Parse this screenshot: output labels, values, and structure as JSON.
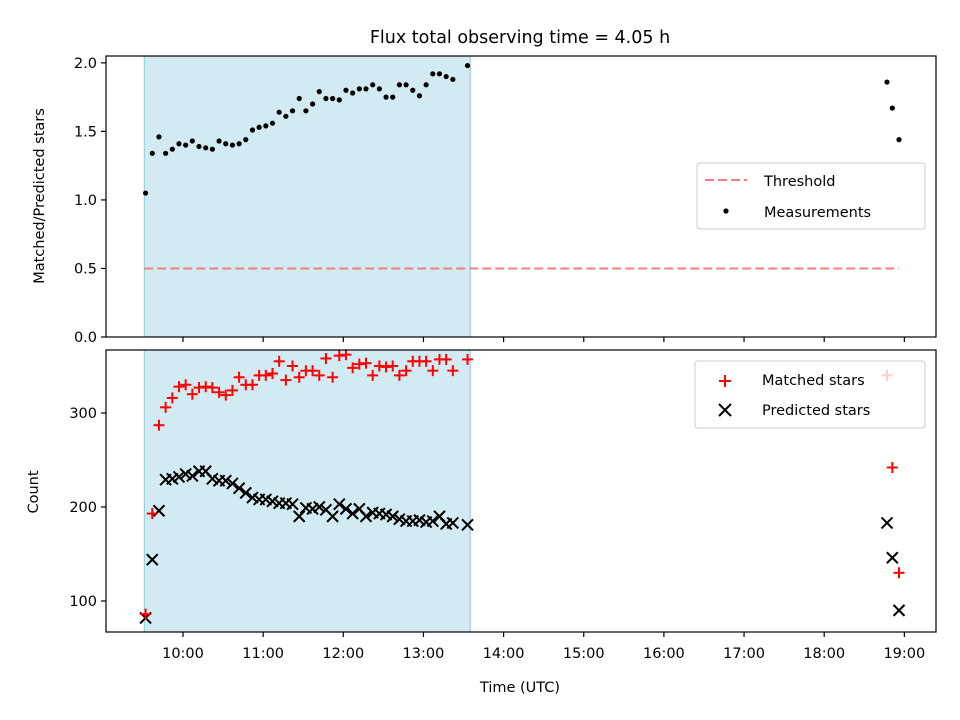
{
  "chart_data": [
    {
      "type": "scatter",
      "title": "Flux total observing time = 4.05 h",
      "ylabel": "Matched/Predicted stars",
      "xlabel": "",
      "ylim": [
        0,
        2.05
      ],
      "yticks": [
        "0.0",
        "0.5",
        "1.0",
        "1.5",
        "2.0"
      ],
      "shaded_region": {
        "x": [
          "09:31",
          "13:35"
        ],
        "color": "#add8e6"
      },
      "legend_placement": "center-right",
      "series": [
        {
          "name": "Threshold",
          "style": "dashed-line",
          "color": "#f08080",
          "x": [
            "09:31",
            "18:56"
          ],
          "y": [
            0.5,
            0.5
          ]
        },
        {
          "name": "Measurements",
          "style": "dot",
          "color": "#000000",
          "x": [
            "09:32",
            "09:37",
            "09:42",
            "09:47",
            "09:52",
            "09:57",
            "10:02",
            "10:07",
            "10:12",
            "10:17",
            "10:22",
            "10:27",
            "10:32",
            "10:37",
            "10:42",
            "10:47",
            "10:52",
            "10:57",
            "11:02",
            "11:07",
            "11:12",
            "11:17",
            "11:22",
            "11:27",
            "11:32",
            "11:37",
            "11:42",
            "11:47",
            "11:52",
            "11:57",
            "12:02",
            "12:07",
            "12:12",
            "12:17",
            "12:22",
            "12:27",
            "12:32",
            "12:37",
            "12:42",
            "12:47",
            "12:52",
            "12:57",
            "13:02",
            "13:07",
            "13:12",
            "13:17",
            "13:22",
            "13:33",
            "18:47",
            "18:51",
            "18:56"
          ],
          "y": [
            1.05,
            1.34,
            1.46,
            1.34,
            1.37,
            1.41,
            1.4,
            1.43,
            1.39,
            1.38,
            1.37,
            1.43,
            1.41,
            1.4,
            1.41,
            1.44,
            1.51,
            1.53,
            1.54,
            1.56,
            1.64,
            1.61,
            1.65,
            1.74,
            1.65,
            1.7,
            1.79,
            1.74,
            1.74,
            1.73,
            1.8,
            1.78,
            1.81,
            1.81,
            1.84,
            1.81,
            1.75,
            1.75,
            1.84,
            1.84,
            1.8,
            1.76,
            1.84,
            1.92,
            1.92,
            1.9,
            1.88,
            1.98,
            1.86,
            1.67,
            1.44
          ]
        }
      ]
    },
    {
      "type": "scatter",
      "title": "",
      "ylabel": "Count",
      "xlabel": "Time (UTC)",
      "ylim": [
        67,
        367
      ],
      "yticks": [
        "100",
        "200",
        "300"
      ],
      "xticks": [
        "10:00",
        "11:00",
        "12:00",
        "13:00",
        "14:00",
        "15:00",
        "16:00",
        "17:00",
        "18:00",
        "19:00"
      ],
      "shaded_region": {
        "x": [
          "09:31",
          "13:35"
        ],
        "color": "#add8e6"
      },
      "legend_placement": "top-right",
      "series": [
        {
          "name": "Matched stars",
          "marker": "plus",
          "color": "#ff0000",
          "x": [
            "09:32",
            "09:37",
            "09:42",
            "09:47",
            "09:52",
            "09:57",
            "10:02",
            "10:07",
            "10:12",
            "10:17",
            "10:22",
            "10:27",
            "10:32",
            "10:37",
            "10:42",
            "10:47",
            "10:52",
            "10:57",
            "11:02",
            "11:07",
            "11:12",
            "11:17",
            "11:22",
            "11:27",
            "11:32",
            "11:37",
            "11:42",
            "11:47",
            "11:52",
            "11:57",
            "12:02",
            "12:07",
            "12:12",
            "12:17",
            "12:22",
            "12:27",
            "12:32",
            "12:37",
            "12:42",
            "12:47",
            "12:52",
            "12:57",
            "13:02",
            "13:07",
            "13:12",
            "13:17",
            "13:22",
            "13:33",
            "18:47",
            "18:51",
            "18:56"
          ],
          "y": [
            86,
            193,
            287,
            306,
            316,
            328,
            330,
            320,
            327,
            328,
            327,
            322,
            319,
            324,
            338,
            330,
            330,
            340,
            340,
            342,
            355,
            335,
            350,
            338,
            345,
            345,
            340,
            358,
            338,
            361,
            362,
            348,
            352,
            353,
            340,
            350,
            349,
            350,
            340,
            345,
            355,
            355,
            355,
            345,
            357,
            357,
            345,
            357,
            340,
            242,
            130
          ]
        },
        {
          "name": "Predicted stars",
          "marker": "x",
          "color": "#000000",
          "x": [
            "09:32",
            "09:37",
            "09:42",
            "09:47",
            "09:52",
            "09:57",
            "10:02",
            "10:07",
            "10:12",
            "10:17",
            "10:22",
            "10:27",
            "10:32",
            "10:37",
            "10:42",
            "10:47",
            "10:52",
            "10:57",
            "11:02",
            "11:07",
            "11:12",
            "11:17",
            "11:22",
            "11:27",
            "11:32",
            "11:37",
            "11:42",
            "11:47",
            "11:52",
            "11:57",
            "12:02",
            "12:07",
            "12:12",
            "12:17",
            "12:22",
            "12:27",
            "12:32",
            "12:37",
            "12:42",
            "12:47",
            "12:52",
            "12:57",
            "13:02",
            "13:07",
            "13:12",
            "13:17",
            "13:22",
            "13:33",
            "18:47",
            "18:51",
            "18:56"
          ],
          "y": [
            82,
            144,
            196,
            229,
            230,
            232,
            235,
            233,
            238,
            238,
            230,
            228,
            228,
            225,
            220,
            215,
            210,
            208,
            208,
            206,
            204,
            204,
            203,
            190,
            199,
            198,
            200,
            197,
            190,
            203,
            198,
            193,
            198,
            190,
            194,
            193,
            192,
            190,
            187,
            185,
            185,
            186,
            184,
            185,
            190,
            182,
            183,
            181,
            183,
            146,
            90
          ]
        }
      ]
    }
  ]
}
